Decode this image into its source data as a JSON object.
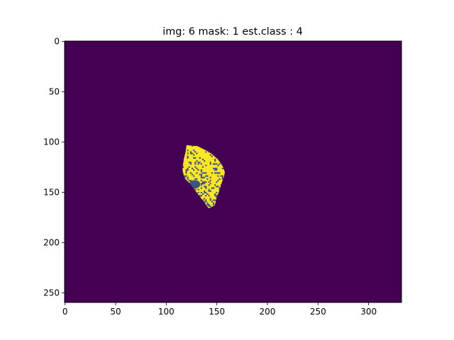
{
  "chart_data": {
    "type": "heatmap",
    "title": "img: 6 mask: 1 est.class : 4",
    "xlabel": "",
    "ylabel": "",
    "xlim": [
      0,
      333
    ],
    "ylim": [
      260,
      0
    ],
    "x_ticks": [
      0,
      50,
      100,
      150,
      200,
      250,
      300
    ],
    "y_ticks": [
      0,
      50,
      100,
      150,
      200,
      250
    ],
    "colormap": "viridis",
    "colors": {
      "background": "#440154",
      "segment_high": "#fde725",
      "segment_mid": "#3b528b"
    },
    "grid": false,
    "legend": "none",
    "image_size": {
      "rows": 260,
      "cols": 333
    },
    "segment": {
      "label": "mask region",
      "rows": [
        103,
        166
      ],
      "cols": [
        116,
        158
      ],
      "outline": [
        [
          103,
          120
        ],
        [
          104,
          131
        ],
        [
          110,
          143
        ],
        [
          117,
          151
        ],
        [
          124,
          156
        ],
        [
          130,
          158
        ],
        [
          135,
          157
        ],
        [
          140,
          155
        ],
        [
          147,
          153
        ],
        [
          155,
          150
        ],
        [
          163,
          148
        ],
        [
          166,
          142
        ],
        [
          158,
          136
        ],
        [
          150,
          130
        ],
        [
          142,
          124
        ],
        [
          136,
          118
        ],
        [
          128,
          116
        ],
        [
          118,
          117
        ],
        [
          110,
          119
        ]
      ],
      "dominant_value": "segment_high",
      "secondary_value": "segment_mid"
    }
  }
}
